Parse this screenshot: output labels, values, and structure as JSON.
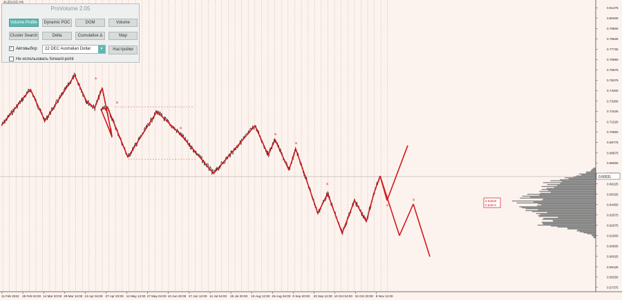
{
  "window": {
    "symbol_label": "AUDUSD,H4"
  },
  "panel": {
    "title": "ProVolume 2.05",
    "buttons": [
      {
        "label": "Volume Profile",
        "active": true
      },
      {
        "label": "Dynamic POC",
        "active": false
      },
      {
        "label": "DOM",
        "active": false
      },
      {
        "label": "Volume",
        "active": false
      },
      {
        "label": "Cluster Search",
        "active": false
      },
      {
        "label": "Delta",
        "active": false
      },
      {
        "label": "Cumulative Δ",
        "active": false
      },
      {
        "label": "Map",
        "active": false
      }
    ],
    "autoselect_label": "Автовыбор",
    "instrument": "22 DEC Australian Dollar",
    "settings_label": "Настройки",
    "forward_point_label": "Не использовать forward-point"
  },
  "colors": {
    "background": "#fdf3ee",
    "zigzag": "#d4161b",
    "price": "#111111",
    "profile": "#808080",
    "accent": "#5fb7b0"
  },
  "chart_data": {
    "type": "line",
    "symbol": "AUDUSD",
    "timeframe": "H4",
    "x_tick_labels": [
      "11 Feb 2022",
      "28 Feb 04:00",
      "14 Mar 20:00",
      "29 Mar 12:00",
      "13 Apr 04:00",
      "27 Apr 20:00",
      "12 May 12:00",
      "27 May 04:00",
      "10 Jun 20:00",
      "27 Jun 12:00",
      "12 Jul 04:00",
      "26 Jul 20:00",
      "10 Aug 12:00",
      "25 Aug 04:00",
      "8 Sep 20:00",
      "23 Sep 12:00",
      "10 Oct 04:00",
      "24 Oct 20:00",
      "8 Nov 12:00"
    ],
    "y_tick_labels": [
      "0.81275",
      "0.80400",
      "0.79500",
      "0.78625",
      "0.77725",
      "0.76850",
      "0.75975",
      "0.75075",
      "0.74200",
      "0.73300",
      "0.72425",
      "0.71525",
      "0.70650",
      "0.69775",
      "0.68875",
      "0.68000",
      "0.67100",
      "0.66225",
      "0.65325",
      "0.64450",
      "0.63575",
      "0.62675",
      "0.61800",
      "0.60900",
      "0.60025",
      "0.59125",
      "0.58250",
      "0.57375"
    ],
    "ylim": [
      0.57,
      0.817
    ],
    "current_price": "0.66531",
    "price_labels": [
      "0.64533",
      "0.64571"
    ],
    "zigzag_pivots": [
      {
        "x": "11 Feb 2022",
        "y": 0.712
      },
      {
        "x": "20 Feb",
        "y": 0.743
      },
      {
        "x": "9 Mar",
        "y": 0.716
      },
      {
        "x": "28 Mar",
        "y": 0.755
      },
      {
        "x": "12 Apr",
        "y": 0.733
      },
      {
        "x": "22 Apr",
        "y": 0.727
      },
      {
        "x": "15 Apr",
        "y": 0.744
      },
      {
        "x": "9 May",
        "y": 0.703
      },
      {
        "x": "18 Apr",
        "y": 0.726
      },
      {
        "x": "30 Apr",
        "y": 0.727
      },
      {
        "x": "15 May",
        "y": 0.685
      },
      {
        "x": "1 Jun",
        "y": 0.724
      },
      {
        "x": "17 Jun",
        "y": 0.704
      },
      {
        "x": "13 Jul",
        "y": 0.671
      },
      {
        "x": "10 Aug",
        "y": 0.712
      },
      {
        "x": "19 Aug",
        "y": 0.687
      },
      {
        "x": "24 Aug",
        "y": 0.7
      },
      {
        "x": "1 Sep",
        "y": 0.674
      },
      {
        "x": "10 Sep",
        "y": 0.692
      },
      {
        "x": "22 Sep",
        "y": 0.637
      },
      {
        "x": "1 Oct",
        "y": 0.654
      },
      {
        "x": "10 Oct",
        "y": 0.62
      },
      {
        "x": "17 Oct",
        "y": 0.648
      },
      {
        "x": "24 Oct",
        "y": 0.63
      },
      {
        "x": "3 Nov",
        "y": 0.654
      },
      {
        "x": "8 Nov",
        "y": 0.669
      }
    ],
    "projections": [
      {
        "from_y": 0.669,
        "to_y": 0.648
      },
      {
        "from_y": 0.648,
        "to_y": 0.695
      },
      {
        "from_y": 0.669,
        "to_y": 0.618
      },
      {
        "from_y": 0.618,
        "to_y": 0.645
      },
      {
        "from_y": 0.645,
        "to_y": 0.6
      }
    ],
    "grid": true,
    "volume_profile": true
  }
}
